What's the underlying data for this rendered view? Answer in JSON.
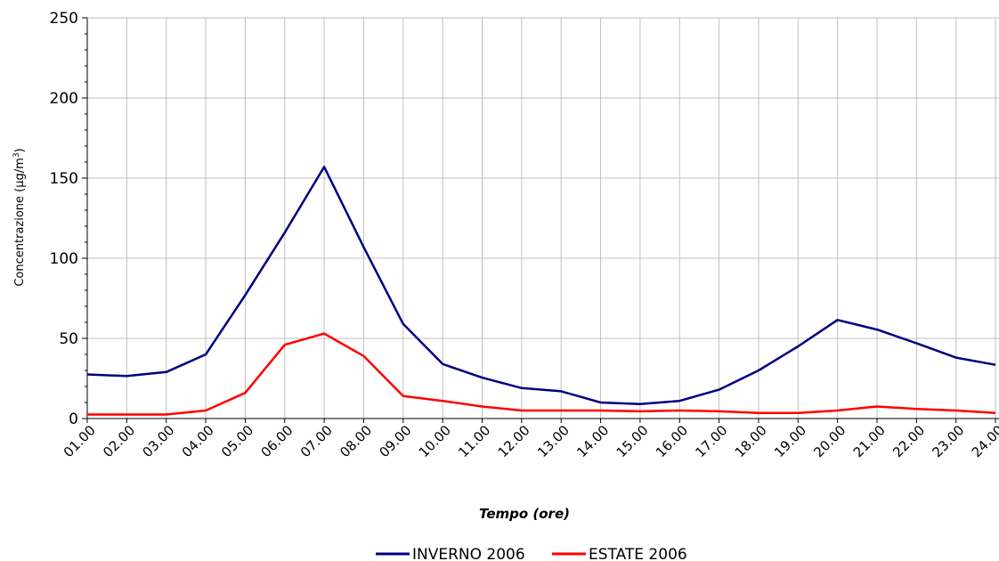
{
  "chart_data": {
    "type": "line",
    "title": "",
    "xlabel": "Tempo (ore)",
    "ylabel_text": "Concentrazione (µg/m",
    "ylabel_sup": "3",
    "ylabel_close": ")",
    "ylim": [
      0,
      250
    ],
    "yticks": [
      0,
      50,
      100,
      150,
      200,
      250
    ],
    "grid": true,
    "legend_position": "bottom",
    "categories": [
      "01.00",
      "02.00",
      "03.00",
      "04.00",
      "05.00",
      "06.00",
      "07.00",
      "08.00",
      "09.00",
      "10.00",
      "11.00",
      "12.00",
      "13.00",
      "14.00",
      "15.00",
      "16.00",
      "17.00",
      "18.00",
      "19.00",
      "20.00",
      "21.00",
      "22.00",
      "23.00",
      "24.00"
    ],
    "series": [
      {
        "name": "INVERNO 2006",
        "color": "#000080",
        "values": [
          27.5,
          26.5,
          29,
          40,
          77,
          116,
          157,
          107,
          59,
          34,
          25.5,
          19,
          17,
          10,
          9,
          11,
          18,
          30,
          45,
          61.5,
          55.5,
          47,
          38,
          33.5
        ]
      },
      {
        "name": "ESTATE 2006",
        "color": "#ff0000",
        "values": [
          2.5,
          2.5,
          2.5,
          5,
          16,
          46,
          53,
          39,
          14,
          11,
          7.5,
          5,
          5,
          5,
          4.5,
          5,
          4.5,
          3.5,
          3.5,
          5,
          7.5,
          6,
          5,
          3.5
        ]
      }
    ]
  }
}
